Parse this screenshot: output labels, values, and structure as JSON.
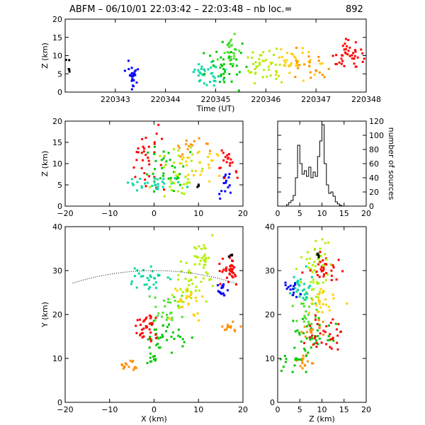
{
  "title": "ABFM – 06/10/01 22:03:42 – 22:03:48 – nb loc.=",
  "count": "892",
  "chart_data": [
    {
      "id": "time-height",
      "type": "scatter",
      "xlabel": "Time (UT)",
      "ylabel": "Z (km)",
      "xlim": [
        220342,
        220348
      ],
      "ylim": [
        0,
        20
      ],
      "xticks": [
        "220343",
        "220344",
        "220345",
        "220346",
        "220347",
        "220348"
      ],
      "yticks": [
        "0",
        "5",
        "10",
        "15",
        "20"
      ],
      "clusters": [
        {
          "color": "#000000",
          "cx": 220342.05,
          "cy": 7,
          "sx": 0.03,
          "sy": 2.5,
          "n": 5
        },
        {
          "color": "#0000ff",
          "cx": 220343.35,
          "cy": 4,
          "sx": 0.06,
          "sy": 2.0,
          "n": 25
        },
        {
          "color": "#00d8a0",
          "cx": 220344.85,
          "cy": 5,
          "sx": 0.15,
          "sy": 1.5,
          "n": 35
        },
        {
          "color": "#00c800",
          "cx": 220345.2,
          "cy": 8,
          "sx": 0.2,
          "sy": 3.0,
          "n": 40
        },
        {
          "color": "#50e030",
          "cx": 220345.3,
          "cy": 11,
          "sx": 0.1,
          "sy": 2.0,
          "n": 20
        },
        {
          "color": "#b0f000",
          "cx": 220346.0,
          "cy": 7,
          "sx": 0.2,
          "sy": 2.0,
          "n": 40
        },
        {
          "color": "#ffd000",
          "cx": 220346.6,
          "cy": 8,
          "sx": 0.25,
          "sy": 2.0,
          "n": 35
        },
        {
          "color": "#ff9000",
          "cx": 220346.9,
          "cy": 7,
          "sx": 0.2,
          "sy": 2.0,
          "n": 20
        },
        {
          "color": "#ff0000",
          "cx": 220347.7,
          "cy": 10,
          "sx": 0.2,
          "sy": 2.0,
          "n": 45
        }
      ]
    },
    {
      "id": "x-z",
      "type": "scatter",
      "xlabel": "",
      "ylabel": "Z (km)",
      "xlim": [
        -20,
        20
      ],
      "ylim": [
        0,
        20
      ],
      "xticks": [
        "−20",
        "−10",
        "0",
        "10",
        "20"
      ],
      "yticks": [
        "0",
        "5",
        "10",
        "15",
        "20"
      ],
      "clusters": [
        {
          "color": "#ff0000",
          "cx": -2,
          "cy": 12,
          "sx": 2.0,
          "sy": 4,
          "n": 35
        },
        {
          "color": "#00c800",
          "cx": 2,
          "cy": 8,
          "sx": 2.5,
          "sy": 3,
          "n": 35
        },
        {
          "color": "#00d8a0",
          "cx": 0,
          "cy": 5,
          "sx": 3.0,
          "sy": 1,
          "n": 30
        },
        {
          "color": "#b0f000",
          "cx": 6,
          "cy": 8,
          "sx": 3.0,
          "sy": 3,
          "n": 35
        },
        {
          "color": "#ffd000",
          "cx": 10,
          "cy": 10,
          "sx": 3.0,
          "sy": 2,
          "n": 25
        },
        {
          "color": "#ff9000",
          "cx": 8,
          "cy": 14,
          "sx": 2.0,
          "sy": 1,
          "n": 15
        },
        {
          "color": "#0000ff",
          "cx": 16,
          "cy": 5,
          "sx": 1.0,
          "sy": 2,
          "n": 15
        },
        {
          "color": "#ff0000",
          "cx": 17,
          "cy": 10,
          "sx": 1.5,
          "sy": 2,
          "n": 20
        },
        {
          "color": "#000000",
          "cx": 10,
          "cy": 5,
          "sx": 0.3,
          "sy": 0.3,
          "n": 3
        }
      ]
    },
    {
      "id": "histogram",
      "type": "bar",
      "xlabel": "",
      "ylabel": "number of sources",
      "xlim": [
        0,
        20
      ],
      "ylim": [
        0,
        120
      ],
      "xticks": [
        "0",
        "5",
        "10",
        "15",
        "20"
      ],
      "yticks": [
        "0",
        "20",
        "40",
        "60",
        "80",
        "100",
        "120"
      ],
      "bin_width": 0.5,
      "bin_starts": [
        2.0,
        2.5,
        3.0,
        3.5,
        4.0,
        4.5,
        5.0,
        5.5,
        6.0,
        6.5,
        7.0,
        7.5,
        8.0,
        8.5,
        9.0,
        9.5,
        10.0,
        10.5,
        11.0,
        11.5,
        12.0,
        12.5,
        13.0,
        13.5,
        14.0
      ],
      "values": [
        2,
        5,
        8,
        15,
        40,
        86,
        60,
        45,
        50,
        42,
        55,
        40,
        48,
        42,
        70,
        92,
        115,
        60,
        30,
        18,
        20,
        14,
        6,
        3,
        1
      ]
    },
    {
      "id": "x-y",
      "type": "scatter",
      "xlabel": "X (km)",
      "ylabel": "Y (km)",
      "xlim": [
        -20,
        20
      ],
      "ylim": [
        0,
        40
      ],
      "xticks": [
        "−20",
        "−10",
        "0",
        "10",
        "20"
      ],
      "yticks": [
        "0",
        "10",
        "20",
        "30",
        "40"
      ],
      "range_ring": {
        "center_x": 0,
        "center_y": -30,
        "radius": 60
      },
      "clusters": [
        {
          "color": "#ff9000",
          "cx": -5.5,
          "cy": 8.5,
          "sx": 0.7,
          "sy": 0.7,
          "n": 15
        },
        {
          "color": "#00c800",
          "cx": -0.5,
          "cy": 10,
          "sx": 0.4,
          "sy": 0.8,
          "n": 10
        },
        {
          "color": "#00c800",
          "cx": 3,
          "cy": 15,
          "sx": 2.5,
          "sy": 2,
          "n": 35
        },
        {
          "color": "#ff0000",
          "cx": -1.5,
          "cy": 17,
          "sx": 1.3,
          "sy": 2,
          "n": 35
        },
        {
          "color": "#50e030",
          "cx": 3,
          "cy": 21,
          "sx": 2.0,
          "sy": 2,
          "n": 25
        },
        {
          "color": "#00d8a0",
          "cx": -1,
          "cy": 28,
          "sx": 2.5,
          "sy": 1.5,
          "n": 30
        },
        {
          "color": "#b0f000",
          "cx": 8,
          "cy": 27,
          "sx": 2.0,
          "sy": 3,
          "n": 35
        },
        {
          "color": "#b0f000",
          "cx": 11,
          "cy": 33,
          "sx": 1.5,
          "sy": 3,
          "n": 30
        },
        {
          "color": "#ffd000",
          "cx": 7,
          "cy": 23,
          "sx": 2.0,
          "sy": 2,
          "n": 25
        },
        {
          "color": "#ff0000",
          "cx": 17,
          "cy": 30,
          "sx": 1.2,
          "sy": 1.2,
          "n": 35
        },
        {
          "color": "#0000ff",
          "cx": 15.5,
          "cy": 25.5,
          "sx": 0.8,
          "sy": 1.0,
          "n": 15
        },
        {
          "color": "#ff9000",
          "cx": 17,
          "cy": 17,
          "sx": 1.5,
          "sy": 0.8,
          "n": 15
        },
        {
          "color": "#000000",
          "cx": 17.5,
          "cy": 33.5,
          "sx": 0.3,
          "sy": 0.2,
          "n": 4
        }
      ]
    },
    {
      "id": "z-y",
      "type": "scatter",
      "xlabel": "Z (km)",
      "ylabel": "",
      "xlim": [
        0,
        20
      ],
      "ylim": [
        0,
        40
      ],
      "xticks": [
        "0",
        "5",
        "10",
        "15",
        "20"
      ],
      "yticks": [
        "0",
        "10",
        "20",
        "30",
        "40"
      ],
      "clusters": [
        {
          "color": "#ff9000",
          "cx": 6,
          "cy": 9,
          "sx": 1.0,
          "sy": 1,
          "n": 15
        },
        {
          "color": "#00c800",
          "cx": 5,
          "cy": 10,
          "sx": 2.0,
          "sy": 1.5,
          "n": 20
        },
        {
          "color": "#00c800",
          "cx": 9,
          "cy": 16,
          "sx": 2.5,
          "sy": 1.5,
          "n": 30
        },
        {
          "color": "#ff0000",
          "cx": 10,
          "cy": 16,
          "sx": 2.5,
          "sy": 2,
          "n": 35
        },
        {
          "color": "#50e030",
          "cx": 7,
          "cy": 21,
          "sx": 1.5,
          "sy": 2,
          "n": 25
        },
        {
          "color": "#00d8a0",
          "cx": 5,
          "cy": 26,
          "sx": 1.5,
          "sy": 2,
          "n": 30
        },
        {
          "color": "#b0f000",
          "cx": 8,
          "cy": 29,
          "sx": 1.5,
          "sy": 3,
          "n": 35
        },
        {
          "color": "#ffd000",
          "cx": 10,
          "cy": 23,
          "sx": 2.0,
          "sy": 1.5,
          "n": 25
        },
        {
          "color": "#0000ff",
          "cx": 3,
          "cy": 26,
          "sx": 1.0,
          "sy": 1.5,
          "n": 15
        },
        {
          "color": "#ff0000",
          "cx": 11,
          "cy": 30,
          "sx": 2.0,
          "sy": 1.5,
          "n": 30
        },
        {
          "color": "#b0f000",
          "cx": 10,
          "cy": 35,
          "sx": 1.0,
          "sy": 2,
          "n": 15
        },
        {
          "color": "#ff9000",
          "cx": 8,
          "cy": 17,
          "sx": 1.5,
          "sy": 1,
          "n": 12
        },
        {
          "color": "#000000",
          "cx": 9,
          "cy": 33.5,
          "sx": 0.2,
          "sy": 0.2,
          "n": 4
        }
      ]
    }
  ]
}
